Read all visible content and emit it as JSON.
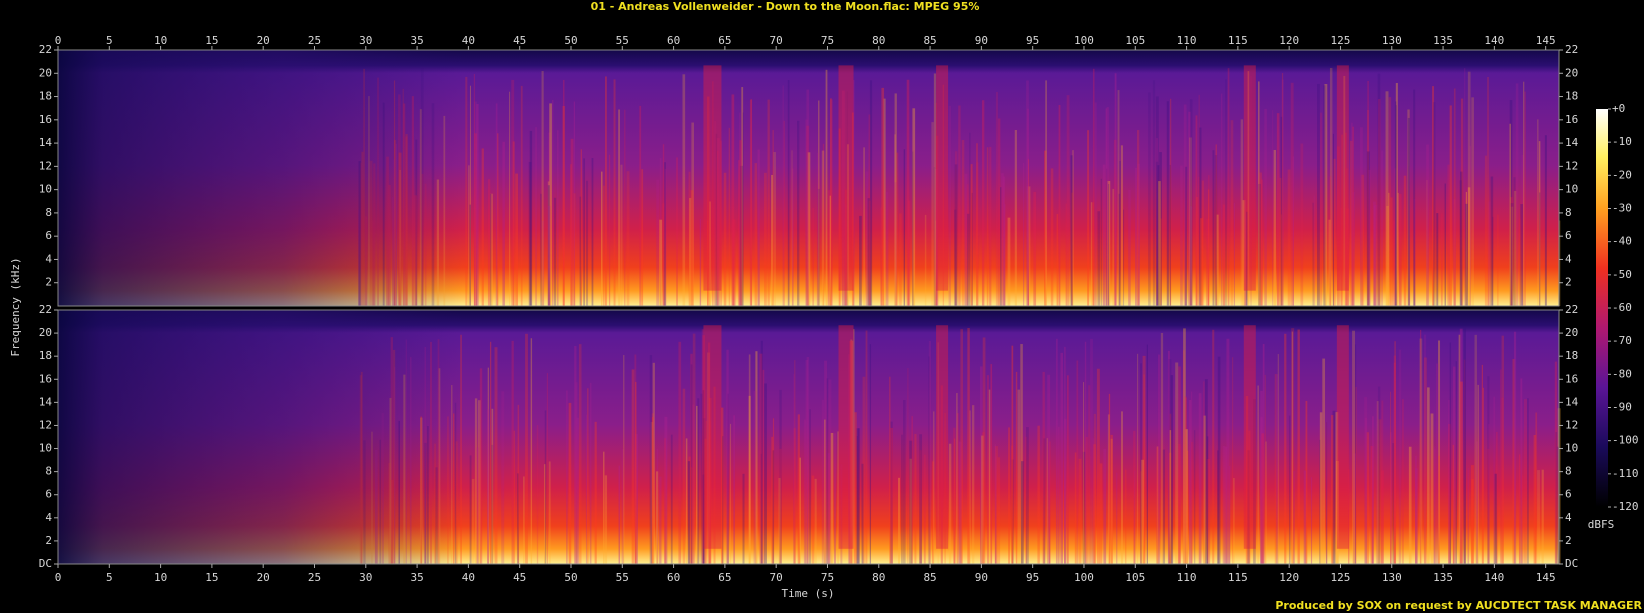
{
  "chart_data": {
    "type": "spectrogram",
    "title": "01 - Andreas Vollenweider - Down to the Moon.flac: MPEG 95%",
    "x_label": "Time (s)",
    "y_label": "Frequency (kHz)",
    "xlim": [
      0,
      146.3
    ],
    "xticks": [
      0,
      5,
      10,
      15,
      20,
      25,
      30,
      35,
      40,
      45,
      50,
      55,
      60,
      65,
      70,
      75,
      80,
      85,
      90,
      95,
      100,
      105,
      110,
      115,
      120,
      125,
      130,
      135,
      140,
      145
    ],
    "ylim": [
      0,
      22
    ],
    "yticks": [
      {
        "value": 0,
        "label": "DC"
      },
      2,
      4,
      6,
      8,
      10,
      12,
      14,
      16,
      18,
      20,
      22
    ],
    "colorbar": {
      "label": "dBFS",
      "lim": [
        -120,
        0
      ],
      "ticks": [
        {
          "value": 0,
          "label": "+0"
        },
        -10,
        -20,
        -30,
        -40,
        -50,
        -60,
        -70,
        -80,
        -90,
        -100,
        -110,
        -120
      ]
    },
    "footer": "Produced by SOX on request by AUCDTECT TASK MANAGER"
  }
}
